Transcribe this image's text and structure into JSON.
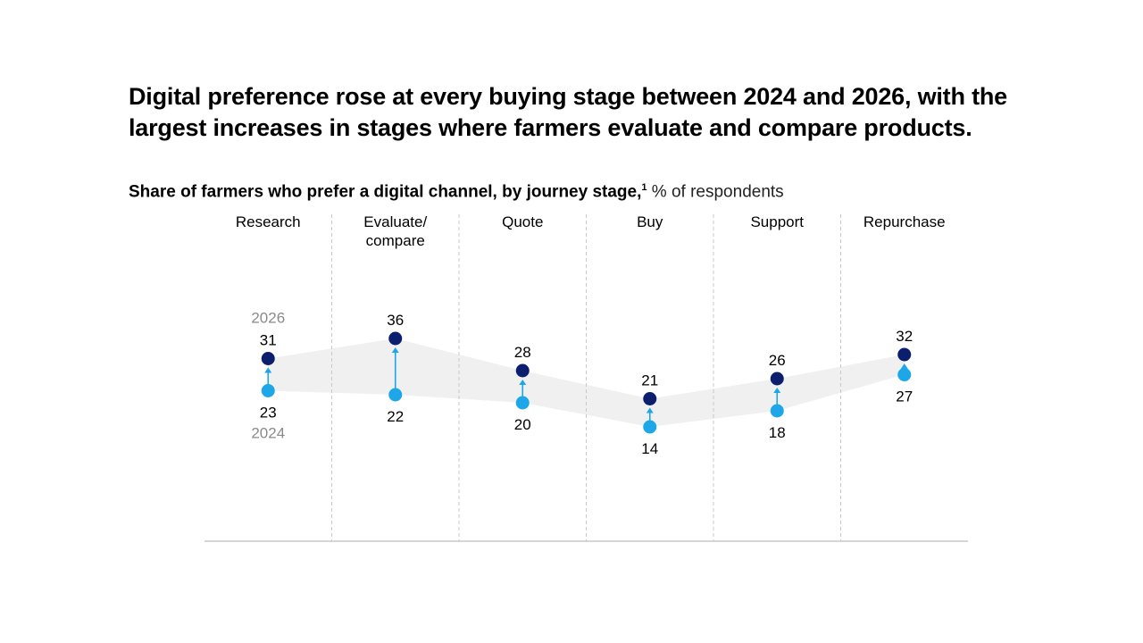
{
  "title": "Digital preference rose at every buying stage between 2024 and 2026, with the largest increases in stages where farmers evaluate and compare products.",
  "subtitle": {
    "bold_text": "Share of farmers who prefer a digital channel, by journey stage,",
    "footnote_marker": "1",
    "unit_text": "% of respondents"
  },
  "chart_data": {
    "type": "dumbbell",
    "categories": [
      [
        "Research"
      ],
      [
        "Evaluate/",
        "compare"
      ],
      [
        "Quote"
      ],
      [
        "Buy"
      ],
      [
        "Support"
      ],
      [
        "Repurchase"
      ]
    ],
    "series": [
      {
        "name": "2024",
        "values": [
          23,
          22,
          20,
          14,
          18,
          27
        ]
      },
      {
        "name": "2026",
        "values": [
          31,
          36,
          28,
          21,
          26,
          32
        ]
      }
    ],
    "series_labels_shown_on": "Research",
    "colors": {
      "2024": "#1ea7e8",
      "2026": "#0b1f6e",
      "arrow": "#1ea7e8",
      "band": "#f0f0f0",
      "divider": "#c8c8c8",
      "baseline": "#bdbdbd",
      "year_label": "#8a8a8a"
    },
    "grid": "vertical dashed dividers between stages"
  }
}
